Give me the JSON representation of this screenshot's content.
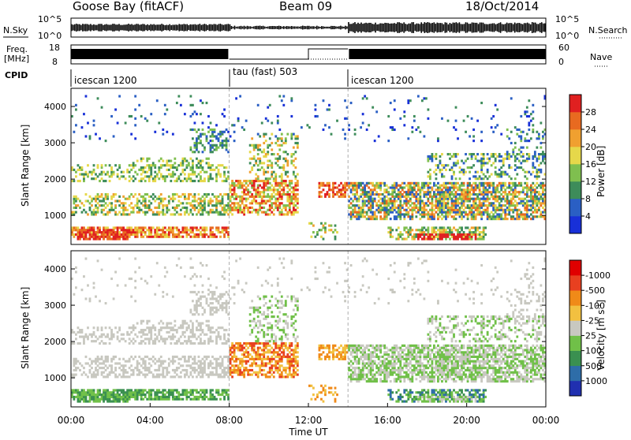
{
  "header": {
    "station": "Goose Bay (fitACF)",
    "beam": "Beam 09",
    "date": "18/Oct/2014"
  },
  "noise_panel": {
    "left_label": "N.Sky",
    "right_label": "N.Search",
    "y_top": "10^5",
    "y_bottom": "10^0",
    "right_top": "10^5",
    "right_bottom": "10^0"
  },
  "freq_panel": {
    "left_label_top": "Freq.",
    "left_label_bottom": "[MHz]",
    "right_label": "Nave",
    "y_top": "18",
    "y_bottom": "8",
    "right_top": "60",
    "right_bottom": "0"
  },
  "cpid_panel": {
    "label": "CPID",
    "segments": [
      "icescan 1200",
      "tau (fast) 503",
      "icescan 1200"
    ]
  },
  "chart_data": [
    {
      "type": "heatmap",
      "name": "power",
      "ylabel": "Slant Range [km]",
      "xlabel": "",
      "x_range_hours": [
        0,
        24
      ],
      "ylim": [
        200,
        4500
      ],
      "yticks": [
        1000,
        2000,
        3000,
        4000
      ],
      "colorbar": {
        "label": "Power [dB]",
        "ticks": [
          "4",
          "8",
          "12",
          "16",
          "20",
          "24",
          "28"
        ],
        "colors": [
          "#1830d8",
          "#2a5fc4",
          "#3d8c5a",
          "#7fbf4f",
          "#e6d84a",
          "#f0a030",
          "#e86a20",
          "#e02020"
        ]
      }
    },
    {
      "type": "heatmap",
      "name": "velocity",
      "ylabel": "Slant Range [km]",
      "xlabel": "Time UT",
      "x_range_hours": [
        0,
        24
      ],
      "ylim": [
        200,
        4500
      ],
      "yticks": [
        1000,
        2000,
        3000,
        4000
      ],
      "xticks": [
        "00:00",
        "04:00",
        "08:00",
        "12:00",
        "16:00",
        "20:00",
        "00:00"
      ],
      "colorbar": {
        "label": "Velocity [m s",
        "label_sup": "-1",
        "label_end": "]",
        "ticks": [
          "1000",
          "500",
          "100",
          "25",
          "-25",
          "-100",
          "-500",
          "-1000"
        ],
        "colors": [
          "#2030b0",
          "#2e6da8",
          "#3a9050",
          "#70c048",
          "#c8c8c0",
          "#f2c040",
          "#f08a18",
          "#e84020",
          "#e00000"
        ]
      }
    }
  ]
}
